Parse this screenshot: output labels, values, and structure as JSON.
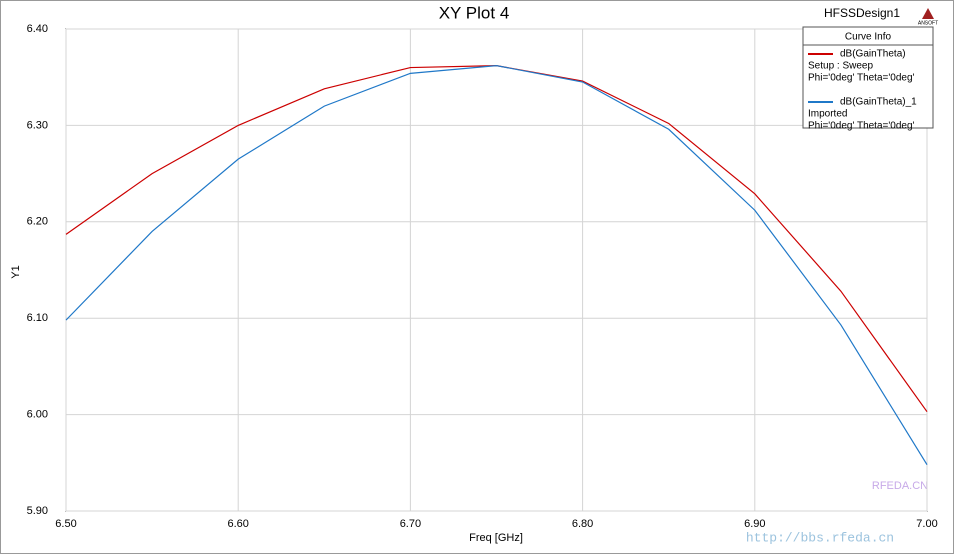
{
  "chart_data": {
    "type": "line",
    "title": "XY Plot 4",
    "design": "HFSSDesign1",
    "brand": "ANSOFT",
    "xlabel": "Freq [GHz]",
    "ylabel": "Y1",
    "legend_title": "Curve Info",
    "watermark": [
      "RFEDA.CN",
      "http://bbs.rfeda.cn"
    ],
    "x": [
      6.5,
      6.55,
      6.6,
      6.65,
      6.7,
      6.75,
      6.8,
      6.85,
      6.9,
      6.95,
      7.0
    ],
    "series": [
      {
        "name": "dB(GainTheta)",
        "details": [
          "Setup : Sweep",
          "Phi='0deg' Theta='0deg'"
        ],
        "color": "#cc0000",
        "values": [
          6.187,
          6.25,
          6.3,
          6.338,
          6.36,
          6.362,
          6.346,
          6.302,
          6.229,
          6.128,
          6.003
        ]
      },
      {
        "name": "dB(GainTheta)_1",
        "details": [
          "Imported",
          "Phi='0deg' Theta='0deg'"
        ],
        "color": "#1f78c8",
        "values": [
          6.098,
          6.19,
          6.265,
          6.32,
          6.354,
          6.362,
          6.345,
          6.296,
          6.212,
          6.093,
          5.948
        ]
      }
    ],
    "xlim": [
      6.5,
      7.0
    ],
    "xticks": [
      {
        "value": 6.5,
        "label": "6.50"
      },
      {
        "value": 6.6,
        "label": "6.60"
      },
      {
        "value": 6.7,
        "label": "6.70"
      },
      {
        "value": 6.8,
        "label": "6.80"
      },
      {
        "value": 6.9,
        "label": "6.90"
      },
      {
        "value": 7.0,
        "label": "7.00"
      }
    ],
    "ylim": [
      5.9,
      6.4
    ],
    "yticks": [
      {
        "value": 5.9,
        "label": "5.90"
      },
      {
        "value": 6.0,
        "label": "6.00"
      },
      {
        "value": 6.1,
        "label": "6.10"
      },
      {
        "value": 6.2,
        "label": "6.20"
      },
      {
        "value": 6.3,
        "label": "6.30"
      },
      {
        "value": 6.4,
        "label": "6.40"
      }
    ],
    "grid": true
  }
}
